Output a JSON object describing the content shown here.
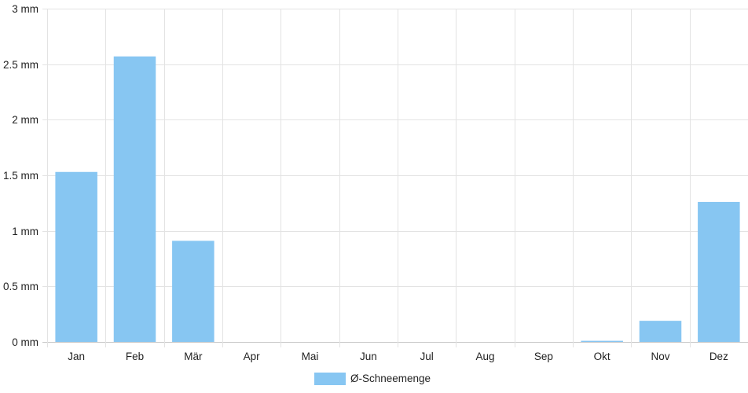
{
  "chart_data": {
    "type": "bar",
    "categories": [
      "Jan",
      "Feb",
      "Mär",
      "Apr",
      "Mai",
      "Jun",
      "Jul",
      "Aug",
      "Sep",
      "Okt",
      "Nov",
      "Dez"
    ],
    "series": [
      {
        "name": "Ø-Schneemenge",
        "color": "#87c6f2",
        "values": [
          1.53,
          2.57,
          0.91,
          0,
          0,
          0,
          0,
          0,
          0,
          0.01,
          0.19,
          1.26
        ]
      }
    ],
    "ylim": [
      0,
      3
    ],
    "yticks": [
      0,
      0.5,
      1,
      1.5,
      2,
      2.5,
      3
    ],
    "ytick_labels": [
      "0 mm",
      "0.5 mm",
      "1 mm",
      "1.5 mm",
      "2 mm",
      "2.5 mm",
      "3 mm"
    ],
    "grid": true,
    "legend": "bottom-center",
    "gridColor": "#e3e3e3"
  }
}
